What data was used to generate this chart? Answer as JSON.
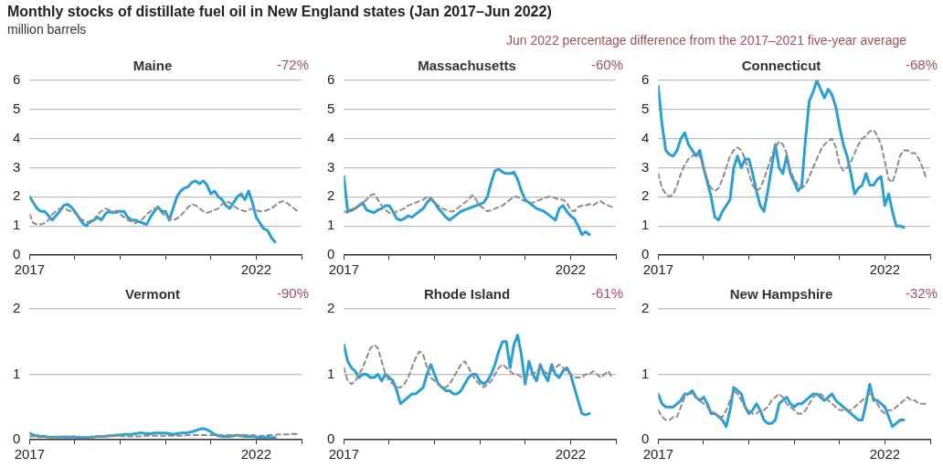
{
  "chart_data": [
    {
      "type": "other",
      "title": "Monthly stocks of distillate fuel oil in New England states (Jan 2017–Jun 2022)",
      "subtitle": "million barrels",
      "annotations": [
        "Jun 2022 percentage difference from the 2017–2021 five-year average"
      ]
    },
    {
      "type": "line",
      "title": "Maine",
      "annotations": [
        "-72%"
      ],
      "grid": "y",
      "xlim": [
        "2017-01",
        "2023-01"
      ],
      "xticks": [
        {
          "value": "2017-01",
          "label": "2017"
        },
        {
          "value": "2018-01",
          "label": null
        },
        {
          "value": "2019-01",
          "label": null
        },
        {
          "value": "2020-01",
          "label": null
        },
        {
          "value": "2021-01",
          "label": null
        },
        {
          "value": "2022-01",
          "label": "2022"
        },
        {
          "value": "2023-01",
          "label": null
        }
      ],
      "ylim": [
        0,
        6
      ],
      "yticks": [
        0,
        1,
        2,
        3,
        4,
        5,
        6
      ],
      "x": [
        "2017-01",
        "2017-02",
        "2017-03",
        "2017-04",
        "2017-05",
        "2017-06",
        "2017-07",
        "2017-08",
        "2017-09",
        "2017-10",
        "2017-11",
        "2017-12",
        "2018-01",
        "2018-02",
        "2018-03",
        "2018-04",
        "2018-05",
        "2018-06",
        "2018-07",
        "2018-08",
        "2018-09",
        "2018-10",
        "2018-11",
        "2018-12",
        "2019-01",
        "2019-02",
        "2019-03",
        "2019-04",
        "2019-05",
        "2019-06",
        "2019-07",
        "2019-08",
        "2019-09",
        "2019-10",
        "2019-11",
        "2019-12",
        "2020-01",
        "2020-02",
        "2020-03",
        "2020-04",
        "2020-05",
        "2020-06",
        "2020-07",
        "2020-08",
        "2020-09",
        "2020-10",
        "2020-11",
        "2020-12",
        "2021-01",
        "2021-02",
        "2021-03",
        "2021-04",
        "2021-05",
        "2021-06",
        "2021-07",
        "2021-08",
        "2021-09",
        "2021-10",
        "2021-11",
        "2021-12",
        "2022-01",
        "2022-02",
        "2022-03",
        "2022-04",
        "2022-05",
        "2022-06",
        "2022-07",
        "2022-08",
        "2022-09",
        "2022-10",
        "2022-11",
        "2022-12"
      ],
      "series": [
        {
          "color": "#8c8c8c",
          "line_style": "dashed",
          "values": [
            1.4,
            1.1,
            1.05,
            1.05,
            1.1,
            1.2,
            1.4,
            1.5,
            1.6,
            1.6,
            1.55,
            1.5,
            1.45,
            1.3,
            1.2,
            1.15,
            1.1,
            1.2,
            1.4,
            1.5,
            1.6,
            1.55,
            1.5,
            1.45,
            1.4,
            1.3,
            1.2,
            1.15,
            1.1,
            1.15,
            1.25,
            1.4,
            1.5,
            1.6,
            1.6,
            1.45,
            1.35,
            1.25,
            1.2,
            1.25,
            1.35,
            1.5,
            1.65,
            1.75,
            1.7,
            1.6,
            1.5,
            1.45,
            1.5,
            1.55,
            1.6,
            1.75,
            1.85,
            1.8,
            1.7,
            1.6,
            1.55,
            1.5,
            1.55,
            1.6,
            1.55,
            1.5,
            1.5,
            1.55,
            1.6,
            1.7,
            1.8,
            1.85,
            1.8,
            1.7,
            1.6,
            1.5
          ]
        },
        {
          "color": "#2a9fd6",
          "line_style": "solid",
          "values": [
            2.0,
            1.8,
            1.6,
            1.5,
            1.5,
            1.35,
            1.2,
            1.35,
            1.5,
            1.7,
            1.75,
            1.65,
            1.5,
            1.3,
            1.1,
            1.0,
            1.15,
            1.2,
            1.3,
            1.2,
            1.4,
            1.5,
            1.45,
            1.5,
            1.5,
            1.5,
            1.3,
            1.2,
            1.2,
            1.15,
            1.1,
            1.05,
            1.3,
            1.5,
            1.65,
            1.5,
            1.5,
            1.2,
            1.6,
            2.0,
            2.2,
            2.3,
            2.35,
            2.5,
            2.55,
            2.45,
            2.55,
            2.4,
            2.1,
            2.2,
            2.0,
            1.9,
            1.7,
            1.6,
            1.8,
            2.0,
            2.1,
            1.9,
            2.2,
            1.8,
            1.3,
            1.1,
            0.9,
            0.85,
            0.6,
            0.45,
            null,
            null,
            null,
            null,
            null,
            null
          ]
        }
      ]
    },
    {
      "type": "line",
      "title": "Massachusetts",
      "annotations": [
        "-60%"
      ],
      "grid": "y",
      "xlim": [
        "2017-01",
        "2023-01"
      ],
      "xticks": [
        {
          "value": "2017-01",
          "label": "2017"
        },
        {
          "value": "2018-01",
          "label": null
        },
        {
          "value": "2019-01",
          "label": null
        },
        {
          "value": "2020-01",
          "label": null
        },
        {
          "value": "2021-01",
          "label": null
        },
        {
          "value": "2022-01",
          "label": "2022"
        },
        {
          "value": "2023-01",
          "label": null
        }
      ],
      "ylim": [
        0,
        6
      ],
      "yticks": [
        0,
        1,
        2,
        3,
        4,
        5,
        6
      ],
      "x": [
        "2017-01",
        "2017-02",
        "2017-03",
        "2017-04",
        "2017-05",
        "2017-06",
        "2017-07",
        "2017-08",
        "2017-09",
        "2017-10",
        "2017-11",
        "2017-12",
        "2018-01",
        "2018-02",
        "2018-03",
        "2018-04",
        "2018-05",
        "2018-06",
        "2018-07",
        "2018-08",
        "2018-09",
        "2018-10",
        "2018-11",
        "2018-12",
        "2019-01",
        "2019-02",
        "2019-03",
        "2019-04",
        "2019-05",
        "2019-06",
        "2019-07",
        "2019-08",
        "2019-09",
        "2019-10",
        "2019-11",
        "2019-12",
        "2020-01",
        "2020-02",
        "2020-03",
        "2020-04",
        "2020-05",
        "2020-06",
        "2020-07",
        "2020-08",
        "2020-09",
        "2020-10",
        "2020-11",
        "2020-12",
        "2021-01",
        "2021-02",
        "2021-03",
        "2021-04",
        "2021-05",
        "2021-06",
        "2021-07",
        "2021-08",
        "2021-09",
        "2021-10",
        "2021-11",
        "2021-12",
        "2022-01",
        "2022-02",
        "2022-03",
        "2022-04",
        "2022-05",
        "2022-06",
        "2022-07",
        "2022-08",
        "2022-09",
        "2022-10",
        "2022-11",
        "2022-12"
      ],
      "series": [
        {
          "color": "#8c8c8c",
          "line_style": "dashed",
          "values": [
            1.5,
            1.45,
            1.5,
            1.6,
            1.7,
            1.8,
            1.9,
            2.05,
            2.1,
            1.9,
            1.7,
            1.55,
            1.45,
            1.4,
            1.5,
            1.55,
            1.6,
            1.7,
            1.75,
            1.8,
            1.85,
            1.9,
            2.0,
            1.95,
            1.8,
            1.7,
            1.6,
            1.55,
            1.5,
            1.5,
            1.6,
            1.7,
            1.8,
            1.9,
            2.05,
            1.9,
            1.7,
            1.6,
            1.5,
            1.55,
            1.6,
            1.65,
            1.7,
            1.8,
            1.9,
            2.0,
            2.0,
            1.9,
            1.85,
            1.8,
            1.8,
            1.85,
            1.9,
            1.95,
            2.0,
            2.0,
            1.95,
            1.9,
            1.9,
            1.8,
            1.55,
            1.5,
            1.65,
            1.7,
            1.7,
            1.75,
            1.7,
            1.8,
            1.85,
            1.75,
            1.7,
            1.65
          ]
        },
        {
          "color": "#2a9fd6",
          "line_style": "solid",
          "values": [
            2.7,
            1.5,
            1.55,
            1.6,
            1.7,
            1.8,
            1.55,
            1.5,
            1.45,
            1.55,
            1.6,
            1.7,
            1.7,
            1.5,
            1.25,
            1.2,
            1.25,
            1.35,
            1.3,
            1.4,
            1.5,
            1.6,
            1.8,
            1.95,
            1.8,
            1.6,
            1.45,
            1.3,
            1.2,
            1.3,
            1.4,
            1.5,
            1.55,
            1.6,
            1.65,
            1.7,
            1.75,
            1.8,
            2.0,
            2.5,
            2.9,
            2.95,
            2.85,
            2.8,
            2.8,
            2.85,
            2.6,
            2.2,
            1.9,
            1.8,
            1.7,
            1.6,
            1.55,
            1.5,
            1.4,
            1.3,
            1.2,
            1.6,
            1.7,
            1.5,
            1.35,
            1.25,
            1.0,
            0.7,
            0.8,
            0.7,
            null,
            null,
            null,
            null,
            null,
            null
          ]
        }
      ]
    },
    {
      "type": "line",
      "title": "Connecticut",
      "annotations": [
        "-68%"
      ],
      "grid": "y",
      "xlim": [
        "2017-01",
        "2023-01"
      ],
      "xticks": [
        {
          "value": "2017-01",
          "label": "2017"
        },
        {
          "value": "2018-01",
          "label": null
        },
        {
          "value": "2019-01",
          "label": null
        },
        {
          "value": "2020-01",
          "label": null
        },
        {
          "value": "2021-01",
          "label": null
        },
        {
          "value": "2022-01",
          "label": "2022"
        },
        {
          "value": "2023-01",
          "label": null
        }
      ],
      "ylim": [
        0,
        6
      ],
      "yticks": [
        0,
        1,
        2,
        3,
        4,
        5,
        6
      ],
      "x": [
        "2017-01",
        "2017-02",
        "2017-03",
        "2017-04",
        "2017-05",
        "2017-06",
        "2017-07",
        "2017-08",
        "2017-09",
        "2017-10",
        "2017-11",
        "2017-12",
        "2018-01",
        "2018-02",
        "2018-03",
        "2018-04",
        "2018-05",
        "2018-06",
        "2018-07",
        "2018-08",
        "2018-09",
        "2018-10",
        "2018-11",
        "2018-12",
        "2019-01",
        "2019-02",
        "2019-03",
        "2019-04",
        "2019-05",
        "2019-06",
        "2019-07",
        "2019-08",
        "2019-09",
        "2019-10",
        "2019-11",
        "2019-12",
        "2020-01",
        "2020-02",
        "2020-03",
        "2020-04",
        "2020-05",
        "2020-06",
        "2020-07",
        "2020-08",
        "2020-09",
        "2020-10",
        "2020-11",
        "2020-12",
        "2021-01",
        "2021-02",
        "2021-03",
        "2021-04",
        "2021-05",
        "2021-06",
        "2021-07",
        "2021-08",
        "2021-09",
        "2021-10",
        "2021-11",
        "2021-12",
        "2022-01",
        "2022-02",
        "2022-03",
        "2022-04",
        "2022-05",
        "2022-06",
        "2022-07",
        "2022-08",
        "2022-09",
        "2022-10",
        "2022-11",
        "2022-12"
      ],
      "series": [
        {
          "color": "#8c8c8c",
          "line_style": "dashed",
          "values": [
            2.8,
            2.3,
            2.1,
            2.0,
            2.1,
            2.4,
            2.8,
            3.1,
            3.3,
            3.4,
            3.5,
            3.4,
            3.0,
            2.6,
            2.3,
            2.2,
            2.3,
            2.6,
            3.0,
            3.4,
            3.6,
            3.7,
            3.6,
            3.3,
            2.8,
            2.4,
            2.2,
            2.3,
            2.6,
            3.0,
            3.4,
            3.7,
            3.9,
            3.8,
            3.5,
            2.9,
            2.6,
            2.4,
            2.3,
            2.4,
            2.7,
            3.0,
            3.3,
            3.6,
            3.8,
            3.9,
            4.0,
            3.7,
            3.1,
            2.9,
            3.0,
            3.2,
            3.5,
            3.8,
            4.0,
            4.1,
            4.25,
            4.3,
            4.1,
            3.8,
            3.2,
            2.6,
            2.5,
            2.9,
            3.4,
            3.6,
            3.6,
            3.5,
            3.5,
            3.3,
            3.0,
            2.6
          ]
        },
        {
          "color": "#2a9fd6",
          "line_style": "solid",
          "values": [
            5.8,
            4.5,
            3.6,
            3.45,
            3.4,
            3.6,
            4.0,
            4.2,
            3.8,
            3.6,
            3.4,
            3.6,
            3.0,
            2.5,
            2.0,
            1.3,
            1.2,
            1.5,
            1.7,
            1.9,
            3.0,
            3.4,
            3.0,
            3.3,
            3.3,
            2.8,
            2.2,
            1.7,
            1.5,
            2.2,
            3.0,
            3.8,
            3.0,
            2.8,
            3.4,
            2.8,
            2.5,
            2.2,
            2.4,
            4.0,
            5.3,
            5.6,
            6.0,
            5.7,
            5.4,
            5.7,
            5.5,
            5.1,
            4.4,
            3.8,
            3.4,
            2.8,
            2.1,
            2.3,
            2.4,
            2.8,
            2.4,
            2.4,
            2.6,
            2.7,
            1.7,
            2.1,
            1.5,
            1.0,
            1.0,
            0.95,
            null,
            null,
            null,
            null,
            null,
            null
          ]
        }
      ]
    },
    {
      "type": "line",
      "title": "Vermont",
      "annotations": [
        "-90%"
      ],
      "grid": "y",
      "xlim": [
        "2017-01",
        "2023-01"
      ],
      "xticks": [
        {
          "value": "2017-01",
          "label": "2017"
        },
        {
          "value": "2018-01",
          "label": null
        },
        {
          "value": "2019-01",
          "label": null
        },
        {
          "value": "2020-01",
          "label": null
        },
        {
          "value": "2021-01",
          "label": null
        },
        {
          "value": "2022-01",
          "label": "2022"
        },
        {
          "value": "2023-01",
          "label": null
        }
      ],
      "ylim": [
        0,
        2
      ],
      "yticks": [
        0,
        1,
        2
      ],
      "x": [
        "2017-01",
        "2017-02",
        "2017-03",
        "2017-04",
        "2017-05",
        "2017-06",
        "2017-07",
        "2017-08",
        "2017-09",
        "2017-10",
        "2017-11",
        "2017-12",
        "2018-01",
        "2018-02",
        "2018-03",
        "2018-04",
        "2018-05",
        "2018-06",
        "2018-07",
        "2018-08",
        "2018-09",
        "2018-10",
        "2018-11",
        "2018-12",
        "2019-01",
        "2019-02",
        "2019-03",
        "2019-04",
        "2019-05",
        "2019-06",
        "2019-07",
        "2019-08",
        "2019-09",
        "2019-10",
        "2019-11",
        "2019-12",
        "2020-01",
        "2020-02",
        "2020-03",
        "2020-04",
        "2020-05",
        "2020-06",
        "2020-07",
        "2020-08",
        "2020-09",
        "2020-10",
        "2020-11",
        "2020-12",
        "2021-01",
        "2021-02",
        "2021-03",
        "2021-04",
        "2021-05",
        "2021-06",
        "2021-07",
        "2021-08",
        "2021-09",
        "2021-10",
        "2021-11",
        "2021-12",
        "2022-01",
        "2022-02",
        "2022-03",
        "2022-04",
        "2022-05",
        "2022-06",
        "2022-07",
        "2022-08",
        "2022-09",
        "2022-10",
        "2022-11",
        "2022-12"
      ],
      "series": [
        {
          "color": "#8c8c8c",
          "line_style": "dashed",
          "values": [
            0.05,
            0.05,
            0.04,
            0.04,
            0.04,
            0.04,
            0.04,
            0.04,
            0.05,
            0.05,
            0.05,
            0.05,
            0.05,
            0.05,
            0.04,
            0.04,
            0.04,
            0.04,
            0.05,
            0.05,
            0.05,
            0.06,
            0.06,
            0.06,
            0.06,
            0.05,
            0.05,
            0.05,
            0.05,
            0.05,
            0.06,
            0.06,
            0.06,
            0.06,
            0.06,
            0.06,
            0.06,
            0.06,
            0.06,
            0.06,
            0.06,
            0.06,
            0.07,
            0.07,
            0.07,
            0.07,
            0.07,
            0.07,
            0.07,
            0.07,
            0.07,
            0.07,
            0.07,
            0.07,
            0.07,
            0.07,
            0.07,
            0.07,
            0.07,
            0.07,
            0.06,
            0.06,
            0.06,
            0.07,
            0.07,
            0.07,
            0.08,
            0.08,
            0.08,
            0.08,
            0.09,
            0.08
          ]
        },
        {
          "color": "#2a9fd6",
          "line_style": "solid",
          "values": [
            0.1,
            0.07,
            0.06,
            0.05,
            0.05,
            0.04,
            0.04,
            0.04,
            0.04,
            0.04,
            0.04,
            0.04,
            0.04,
            0.03,
            0.03,
            0.03,
            0.04,
            0.04,
            0.05,
            0.05,
            0.05,
            0.06,
            0.06,
            0.07,
            0.07,
            0.08,
            0.08,
            0.08,
            0.09,
            0.1,
            0.1,
            0.09,
            0.09,
            0.1,
            0.1,
            0.1,
            0.1,
            0.09,
            0.08,
            0.09,
            0.1,
            0.1,
            0.11,
            0.12,
            0.14,
            0.16,
            0.17,
            0.15,
            0.12,
            0.08,
            0.06,
            0.05,
            0.05,
            0.05,
            0.06,
            0.07,
            0.06,
            0.05,
            0.05,
            0.05,
            0.04,
            0.03,
            0.03,
            0.04,
            0.03,
            0.03,
            null,
            null,
            null,
            null,
            null,
            null
          ]
        }
      ]
    },
    {
      "type": "line",
      "title": "Rhode Island",
      "annotations": [
        "-61%"
      ],
      "grid": "y",
      "xlim": [
        "2017-01",
        "2023-01"
      ],
      "xticks": [
        {
          "value": "2017-01",
          "label": "2017"
        },
        {
          "value": "2018-01",
          "label": null
        },
        {
          "value": "2019-01",
          "label": null
        },
        {
          "value": "2020-01",
          "label": null
        },
        {
          "value": "2021-01",
          "label": null
        },
        {
          "value": "2022-01",
          "label": "2022"
        },
        {
          "value": "2023-01",
          "label": null
        }
      ],
      "ylim": [
        0,
        2
      ],
      "yticks": [
        0,
        1,
        2
      ],
      "x": [
        "2017-01",
        "2017-02",
        "2017-03",
        "2017-04",
        "2017-05",
        "2017-06",
        "2017-07",
        "2017-08",
        "2017-09",
        "2017-10",
        "2017-11",
        "2017-12",
        "2018-01",
        "2018-02",
        "2018-03",
        "2018-04",
        "2018-05",
        "2018-06",
        "2018-07",
        "2018-08",
        "2018-09",
        "2018-10",
        "2018-11",
        "2018-12",
        "2019-01",
        "2019-02",
        "2019-03",
        "2019-04",
        "2019-05",
        "2019-06",
        "2019-07",
        "2019-08",
        "2019-09",
        "2019-10",
        "2019-11",
        "2019-12",
        "2020-01",
        "2020-02",
        "2020-03",
        "2020-04",
        "2020-05",
        "2020-06",
        "2020-07",
        "2020-08",
        "2020-09",
        "2020-10",
        "2020-11",
        "2020-12",
        "2021-01",
        "2021-02",
        "2021-03",
        "2021-04",
        "2021-05",
        "2021-06",
        "2021-07",
        "2021-08",
        "2021-09",
        "2021-10",
        "2021-11",
        "2021-12",
        "2022-01",
        "2022-02",
        "2022-03",
        "2022-04",
        "2022-05",
        "2022-06",
        "2022-07",
        "2022-08",
        "2022-09",
        "2022-10",
        "2022-11",
        "2022-12"
      ],
      "series": [
        {
          "color": "#8c8c8c",
          "line_style": "dashed",
          "values": [
            1.1,
            0.9,
            0.85,
            0.9,
            1.0,
            1.1,
            1.25,
            1.4,
            1.45,
            1.4,
            1.2,
            1.0,
            0.9,
            0.85,
            0.8,
            0.8,
            0.85,
            0.95,
            1.1,
            1.25,
            1.35,
            1.3,
            1.1,
            0.95,
            0.9,
            0.85,
            0.8,
            0.8,
            0.85,
            0.95,
            1.05,
            1.15,
            1.2,
            1.1,
            1.0,
            0.9,
            0.85,
            0.8,
            0.85,
            0.9,
            1.0,
            1.1,
            1.15,
            1.1,
            1.05,
            1.0,
            1.0,
            0.95,
            0.95,
            1.0,
            1.0,
            1.05,
            1.1,
            1.05,
            1.0,
            1.05,
            1.1,
            1.15,
            1.1,
            1.05,
            1.0,
            0.95,
            0.95,
            0.95,
            1.0,
            1.0,
            1.05,
            1.0,
            0.95,
            1.0,
            1.05,
            0.95
          ]
        },
        {
          "color": "#2a9fd6",
          "line_style": "solid",
          "values": [
            1.45,
            1.2,
            1.1,
            1.05,
            0.95,
            1.0,
            1.0,
            0.95,
            0.95,
            1.0,
            0.9,
            1.0,
            0.95,
            0.9,
            0.75,
            0.55,
            0.6,
            0.65,
            0.7,
            0.7,
            0.75,
            0.8,
            1.0,
            1.15,
            1.0,
            0.85,
            0.8,
            0.75,
            0.75,
            0.7,
            0.7,
            0.75,
            0.85,
            0.95,
            1.0,
            1.0,
            0.9,
            0.85,
            0.9,
            1.0,
            1.15,
            1.35,
            1.5,
            1.5,
            1.1,
            1.45,
            1.6,
            1.3,
            0.85,
            1.2,
            1.0,
            0.9,
            1.15,
            1.0,
            0.9,
            1.15,
            1.0,
            0.95,
            1.05,
            1.1,
            1.0,
            0.8,
            0.6,
            0.4,
            0.38,
            0.4,
            null,
            null,
            null,
            null,
            null,
            null
          ]
        }
      ]
    },
    {
      "type": "line",
      "title": "New Hampshire",
      "annotations": [
        "-32%"
      ],
      "grid": "y",
      "xlim": [
        "2017-01",
        "2023-01"
      ],
      "xticks": [
        {
          "value": "2017-01",
          "label": "2017"
        },
        {
          "value": "2018-01",
          "label": null
        },
        {
          "value": "2019-01",
          "label": null
        },
        {
          "value": "2020-01",
          "label": null
        },
        {
          "value": "2021-01",
          "label": null
        },
        {
          "value": "2022-01",
          "label": "2022"
        },
        {
          "value": "2023-01",
          "label": null
        }
      ],
      "ylim": [
        0,
        2
      ],
      "yticks": [
        0,
        1,
        2
      ],
      "x": [
        "2017-01",
        "2017-02",
        "2017-03",
        "2017-04",
        "2017-05",
        "2017-06",
        "2017-07",
        "2017-08",
        "2017-09",
        "2017-10",
        "2017-11",
        "2017-12",
        "2018-01",
        "2018-02",
        "2018-03",
        "2018-04",
        "2018-05",
        "2018-06",
        "2018-07",
        "2018-08",
        "2018-09",
        "2018-10",
        "2018-11",
        "2018-12",
        "2019-01",
        "2019-02",
        "2019-03",
        "2019-04",
        "2019-05",
        "2019-06",
        "2019-07",
        "2019-08",
        "2019-09",
        "2019-10",
        "2019-11",
        "2019-12",
        "2020-01",
        "2020-02",
        "2020-03",
        "2020-04",
        "2020-05",
        "2020-06",
        "2020-07",
        "2020-08",
        "2020-09",
        "2020-10",
        "2020-11",
        "2020-12",
        "2021-01",
        "2021-02",
        "2021-03",
        "2021-04",
        "2021-05",
        "2021-06",
        "2021-07",
        "2021-08",
        "2021-09",
        "2021-10",
        "2021-11",
        "2021-12",
        "2022-01",
        "2022-02",
        "2022-03",
        "2022-04",
        "2022-05",
        "2022-06",
        "2022-07",
        "2022-08",
        "2022-09",
        "2022-10",
        "2022-11",
        "2022-12"
      ],
      "series": [
        {
          "color": "#8c8c8c",
          "line_style": "dashed",
          "values": [
            0.45,
            0.35,
            0.3,
            0.3,
            0.35,
            0.35,
            0.5,
            0.65,
            0.7,
            0.7,
            0.65,
            0.6,
            0.55,
            0.5,
            0.45,
            0.4,
            0.35,
            0.35,
            0.45,
            0.6,
            0.75,
            0.7,
            0.6,
            0.5,
            0.45,
            0.4,
            0.4,
            0.45,
            0.45,
            0.5,
            0.6,
            0.65,
            0.7,
            0.65,
            0.55,
            0.5,
            0.45,
            0.4,
            0.4,
            0.45,
            0.55,
            0.65,
            0.7,
            0.7,
            0.65,
            0.6,
            0.55,
            0.5,
            0.45,
            0.45,
            0.45,
            0.45,
            0.5,
            0.55,
            0.6,
            0.65,
            0.7,
            0.65,
            0.55,
            0.45,
            0.4,
            0.45,
            0.45,
            0.5,
            0.55,
            0.6,
            0.65,
            0.6,
            0.6,
            0.55,
            0.55,
            0.55
          ]
        },
        {
          "color": "#2a9fd6",
          "line_style": "solid",
          "values": [
            0.7,
            0.55,
            0.5,
            0.5,
            0.5,
            0.55,
            0.6,
            0.7,
            0.7,
            0.75,
            0.65,
            0.6,
            0.65,
            0.55,
            0.4,
            0.4,
            0.35,
            0.3,
            0.2,
            0.45,
            0.8,
            0.75,
            0.7,
            0.5,
            0.4,
            0.45,
            0.55,
            0.45,
            0.3,
            0.25,
            0.25,
            0.3,
            0.55,
            0.6,
            0.65,
            0.55,
            0.5,
            0.55,
            0.55,
            0.6,
            0.65,
            0.7,
            0.7,
            0.65,
            0.6,
            0.65,
            0.7,
            0.6,
            0.55,
            0.5,
            0.45,
            0.4,
            0.35,
            0.3,
            0.3,
            0.55,
            0.85,
            0.6,
            0.6,
            0.55,
            0.5,
            0.35,
            0.2,
            0.25,
            0.3,
            0.3,
            null,
            null,
            null,
            null,
            null,
            null
          ]
        }
      ]
    }
  ]
}
